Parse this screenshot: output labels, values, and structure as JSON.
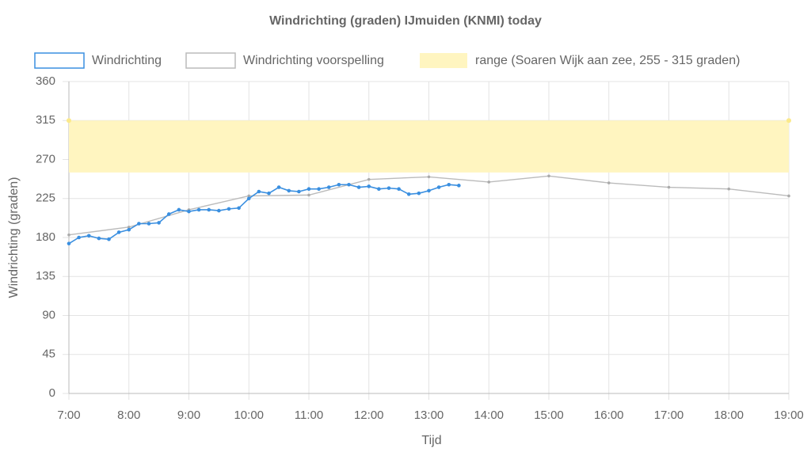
{
  "chart_data": {
    "type": "line",
    "title": "Windrichting (graden) IJmuiden (KNMI) today",
    "x_label": "Tijd",
    "y_label": "Windrichting (graden)",
    "xlim": [
      420,
      1140
    ],
    "xticks": [
      {
        "value": 420,
        "label": "7:00"
      },
      {
        "value": 480,
        "label": "8:00"
      },
      {
        "value": 540,
        "label": "9:00"
      },
      {
        "value": 600,
        "label": "10:00"
      },
      {
        "value": 660,
        "label": "11:00"
      },
      {
        "value": 720,
        "label": "12:00"
      },
      {
        "value": 780,
        "label": "13:00"
      },
      {
        "value": 840,
        "label": "14:00"
      },
      {
        "value": 900,
        "label": "15:00"
      },
      {
        "value": 960,
        "label": "16:00"
      },
      {
        "value": 1020,
        "label": "17:00"
      },
      {
        "value": 1080,
        "label": "18:00"
      },
      {
        "value": 1140,
        "label": "19:00"
      }
    ],
    "ylim": [
      0,
      360
    ],
    "yticks": [
      0,
      45,
      90,
      135,
      180,
      225,
      270,
      315,
      360
    ],
    "grid": true,
    "series": [
      {
        "name": "Windrichting",
        "color": "#3a8fe0",
        "x": [
          420,
          430,
          440,
          450,
          460,
          470,
          480,
          490,
          500,
          510,
          520,
          530,
          540,
          550,
          560,
          570,
          580,
          590,
          600,
          610,
          620,
          630,
          640,
          650,
          660,
          670,
          680,
          690,
          700,
          710,
          720,
          730,
          740,
          750,
          760,
          770,
          780,
          790,
          800,
          810
        ],
        "values": [
          173,
          180,
          182,
          179,
          178,
          186,
          189,
          196,
          196,
          197,
          207,
          212,
          210,
          212,
          212,
          211,
          213,
          214,
          225,
          233,
          231,
          238,
          234,
          233,
          236,
          236,
          238,
          241,
          241,
          238,
          239,
          236,
          237,
          236,
          230,
          231,
          234,
          238,
          241,
          240
        ]
      },
      {
        "name": "Windrichting voorspelling",
        "color": "#bbbbbb",
        "x": [
          420,
          480,
          540,
          600,
          660,
          720,
          780,
          840,
          900,
          960,
          1020,
          1080,
          1140
        ],
        "values": [
          183,
          192,
          212,
          228,
          229,
          247,
          250,
          244,
          251,
          243,
          238,
          236,
          228
        ]
      },
      {
        "name": "range (Soaren Wijk aan zee, 255 - 315 graden)",
        "color": "#fff5c0",
        "x": [
          420,
          1140
        ],
        "values": [
          315,
          315
        ],
        "low": [
          255,
          255
        ]
      }
    ]
  }
}
